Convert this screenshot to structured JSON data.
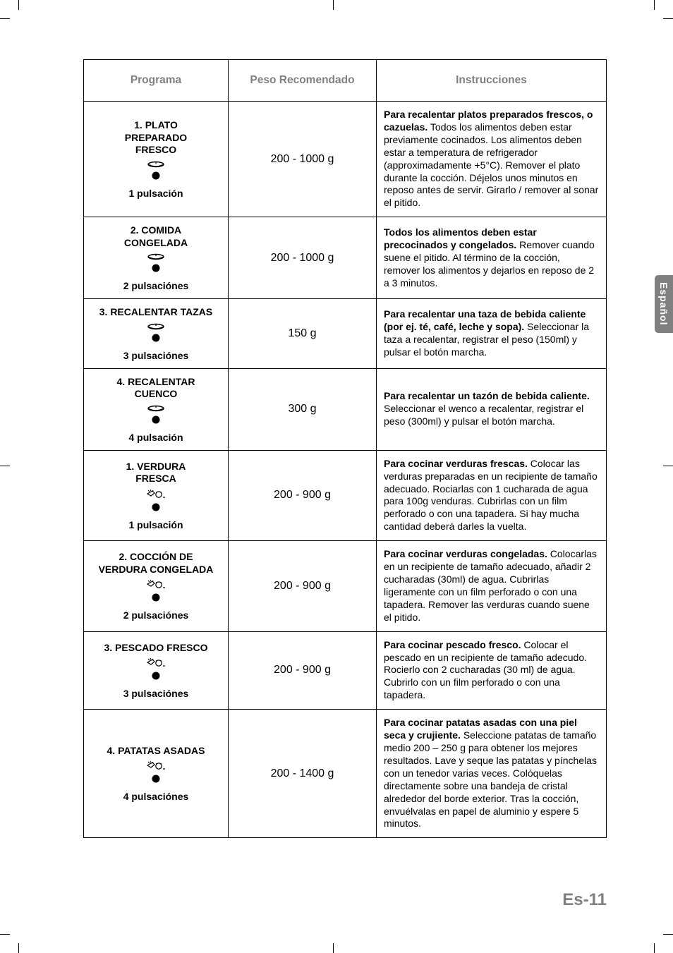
{
  "side_tab": "Español",
  "page_number": "Es-11",
  "headers": {
    "programa": "Programa",
    "peso": "Peso Recomendado",
    "instrucciones": "Instrucciones"
  },
  "colors": {
    "header_text": "#808080",
    "border": "#000000",
    "tab_bg": "#808080",
    "tab_text": "#ffffff",
    "page_num": "#808080",
    "body_text": "#000000",
    "background": "#ffffff"
  },
  "icon_type_a": "dish-platter-icon",
  "icon_type_b": "vegetable-cook-icon",
  "rows": [
    {
      "title": "1. PLATO\nPREPARADO\nFRESCO",
      "icon": "a",
      "pulsacion": "1 pulsación",
      "peso": "200 - 1000 g",
      "inst_bold": "Para recalentar platos preparados frescos, o cazuelas.",
      "inst_rest": " Todos los alimentos deben estar previamente cocinados. Los alimentos deben estar a temperatura de refrigerador (approximadamente +5°C). Remover el plato durante la cocción. Déjelos unos minutos en reposo antes de servir. Girarlo / remover al sonar el pitido."
    },
    {
      "title": "2. COMIDA\nCONGELADA",
      "icon": "a",
      "pulsacion": "2 pulsaciónes",
      "peso": "200 - 1000 g",
      "inst_bold": "Todos los alimentos deben estar precocinados y congelados.",
      "inst_rest": " Remover cuando suene el pitido. Al término de la cocción, remover los alimentos y dejarlos en reposo de 2 a 3 minutos."
    },
    {
      "title": "3. RECALENTAR TAZAS",
      "icon": "a",
      "pulsacion": "3 pulsaciónes",
      "peso": "150 g",
      "inst_bold": "Para recalentar una taza de bebida caliente (por ej. té, café, leche y sopa).",
      "inst_rest": " Seleccionar la taza a recalentar, registrar el peso (150ml) y pulsar el botón marcha."
    },
    {
      "title": "4. RECALENTAR\nCUENCO",
      "icon": "a",
      "pulsacion": "4 pulsación",
      "peso": "300 g",
      "inst_bold": "Para recalentar un tazón de bebida caliente.",
      "inst_rest": "\nSeleccionar el wenco a recalentar, registrar el peso (300ml) y pulsar el botón marcha."
    },
    {
      "title": "1. VERDURA\nFRESCA",
      "icon": "b",
      "pulsacion": "1 pulsación",
      "peso": "200 - 900 g",
      "inst_bold": "Para cocinar verduras frescas.",
      "inst_rest": " Colocar las verduras preparadas en un recipiente de tamaño adecuado. Rociarlas con 1 cucharada de agua para 100g venduras. Cubrirlas con un film perforado o con una tapadera. Si hay mucha cantidad deberá darles la vuelta."
    },
    {
      "title": "2. COCCIÓN DE\nVERDURA CONGELADA",
      "icon": "b",
      "pulsacion": "2 pulsaciónes",
      "peso": "200 - 900 g",
      "inst_bold": "Para cocinar verduras congeladas.",
      "inst_rest": " Colocarlas en un recipiente de tamaño adecuado, añadir 2 cucharadas (30ml) de agua. Cubrirlas ligeramente con un film perforado o con una tapadera. Remover las verduras cuando suene el pitido."
    },
    {
      "title": "3. PESCADO FRESCO",
      "icon": "b",
      "pulsacion": "3 pulsaciónes",
      "peso": "200 - 900 g",
      "inst_bold": "Para cocinar pescado fresco.",
      "inst_rest": " Colocar el pescado en un recipiente de tamaño adecudo. Rocierlo con 2 cucharadas (30 ml) de agua. Cubrirlo con un film perforado o con una tapadera."
    },
    {
      "title": "4. PATATAS ASADAS",
      "icon": "b",
      "pulsacion": "4 pulsaciónes",
      "peso": "200 - 1400 g",
      "inst_bold": "Para cocinar patatas asadas con una piel seca y crujiente.",
      "inst_rest": " Seleccione patatas de tamaño medio 200 – 250 g para obtener los mejores resultados. Lave y seque las patatas y pínchelas con un tenedor varias veces. Colóquelas directamente sobre una bandeja de cristal alrededor del borde exterior. Tras la cocción, envuélvalas en papel de aluminio y espere 5 minutos."
    }
  ]
}
